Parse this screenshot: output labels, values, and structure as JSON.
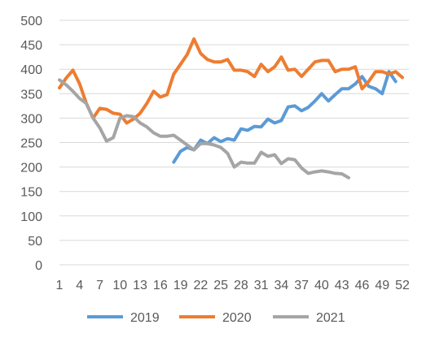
{
  "chart_data": {
    "type": "line",
    "title": "",
    "xlabel": "",
    "ylabel": "",
    "x": [
      1,
      2,
      3,
      4,
      5,
      6,
      7,
      8,
      9,
      10,
      11,
      12,
      13,
      14,
      15,
      16,
      17,
      18,
      19,
      20,
      21,
      22,
      23,
      24,
      25,
      26,
      27,
      28,
      29,
      30,
      31,
      32,
      33,
      34,
      35,
      36,
      37,
      38,
      39,
      40,
      41,
      42,
      43,
      44,
      45,
      46,
      47,
      48,
      49,
      50,
      51,
      52
    ],
    "x_tick_labels": [
      "1",
      "4",
      "7",
      "10",
      "13",
      "16",
      "19",
      "22",
      "25",
      "28",
      "31",
      "34",
      "37",
      "40",
      "43",
      "46",
      "49",
      "52"
    ],
    "ylim": [
      0,
      500
    ],
    "y_ticks": [
      0,
      50,
      100,
      150,
      200,
      250,
      300,
      350,
      400,
      450,
      500
    ],
    "grid": "horizontal",
    "legend_position": "bottom",
    "series": [
      {
        "name": "2019",
        "color": "#5B9BD5",
        "values": [
          null,
          null,
          null,
          null,
          null,
          null,
          null,
          null,
          null,
          null,
          null,
          null,
          null,
          null,
          null,
          null,
          null,
          210,
          232,
          240,
          235,
          255,
          248,
          260,
          252,
          258,
          255,
          278,
          275,
          283,
          282,
          298,
          290,
          295,
          323,
          325,
          315,
          322,
          335,
          350,
          335,
          348,
          360,
          360,
          370,
          385,
          365,
          360,
          350,
          395,
          375,
          null
        ]
      },
      {
        "name": "2020",
        "color": "#ED7D31",
        "values": [
          362,
          382,
          398,
          370,
          330,
          300,
          320,
          318,
          310,
          308,
          290,
          298,
          310,
          330,
          355,
          343,
          348,
          390,
          410,
          430,
          462,
          432,
          420,
          415,
          415,
          420,
          398,
          398,
          395,
          385,
          410,
          395,
          405,
          425,
          398,
          400,
          385,
          400,
          415,
          418,
          418,
          395,
          400,
          400,
          405,
          360,
          375,
          395,
          395,
          390,
          395,
          383
        ]
      },
      {
        "name": "2021",
        "color": "#A5A5A5",
        "values": [
          378,
          368,
          355,
          340,
          330,
          300,
          280,
          253,
          260,
          300,
          305,
          303,
          290,
          282,
          270,
          263,
          263,
          265,
          255,
          245,
          235,
          248,
          248,
          245,
          240,
          228,
          200,
          210,
          208,
          208,
          230,
          222,
          225,
          207,
          217,
          215,
          198,
          187,
          190,
          192,
          190,
          187,
          186,
          178,
          null,
          null,
          null,
          null,
          null,
          null,
          null,
          null
        ]
      }
    ]
  }
}
